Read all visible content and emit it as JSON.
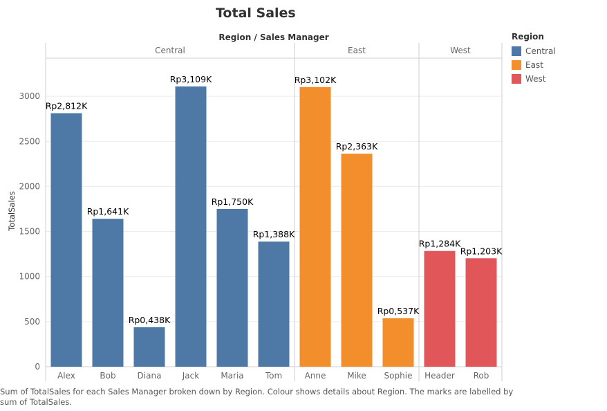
{
  "title": "Total Sales",
  "caption": "Sum of TotalSales for each Sales Manager broken down by Region.  Colour shows details about Region.  The marks are labelled by sum of TotalSales.",
  "legend": {
    "title": "Region",
    "items": [
      {
        "label": "Central",
        "color": "#4e79a7"
      },
      {
        "label": "East",
        "color": "#f28e2b"
      },
      {
        "label": "West",
        "color": "#e15759"
      }
    ]
  },
  "chart_data": {
    "type": "bar",
    "title": "Total Sales",
    "column_header": "Region / Sales Manager",
    "ylabel": "TotalSales",
    "xlabel": "",
    "ylim": [
      0,
      3400
    ],
    "yticks": [
      0,
      500,
      1000,
      1500,
      2000,
      2500,
      3000
    ],
    "grid": true,
    "regions": [
      {
        "name": "Central",
        "color": "#4e79a7",
        "managers": [
          "Alex",
          "Bob",
          "Diana",
          "Jack",
          "Maria",
          "Tom"
        ],
        "values": [
          2812,
          1641,
          438,
          3109,
          1750,
          1388
        ],
        "labels": [
          "Rp2,812K",
          "Rp1,641K",
          "Rp0,438K",
          "Rp3,109K",
          "Rp1,750K",
          "Rp1,388K"
        ]
      },
      {
        "name": "East",
        "color": "#f28e2b",
        "managers": [
          "Anne",
          "Mike",
          "Sophie"
        ],
        "values": [
          3102,
          2363,
          537
        ],
        "labels": [
          "Rp3,102K",
          "Rp2,363K",
          "Rp0,537K"
        ]
      },
      {
        "name": "West",
        "color": "#e15759",
        "managers": [
          "Header",
          "Rob"
        ],
        "values": [
          1284,
          1203
        ],
        "labels": [
          "Rp1,284K",
          "Rp1,203K"
        ]
      }
    ]
  }
}
